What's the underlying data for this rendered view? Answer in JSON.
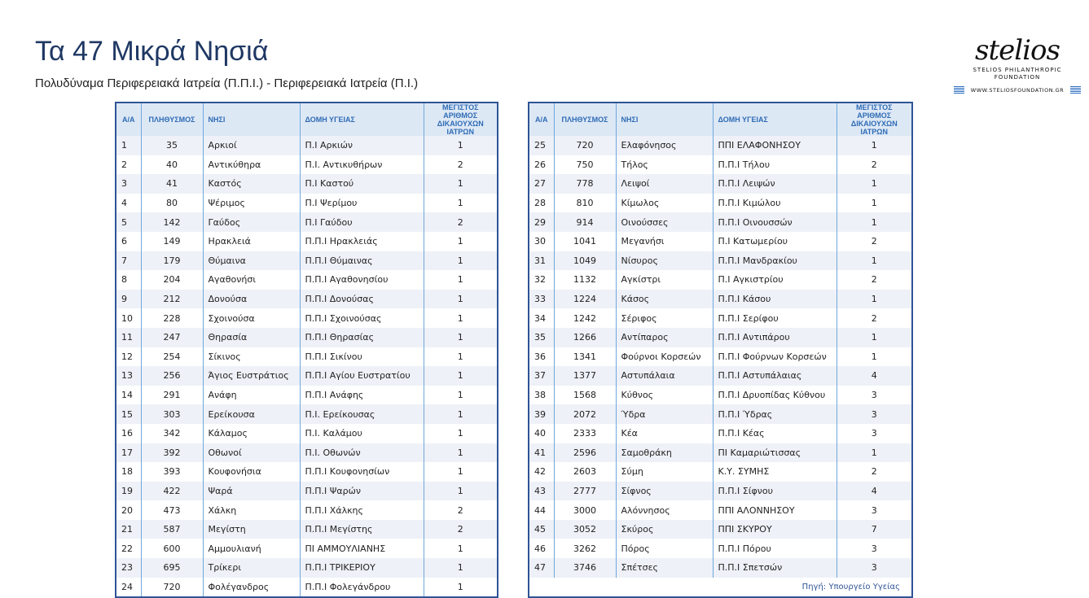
{
  "title": "Τα 47 Μικρά Νησιά",
  "subtitle": "Πολυδύναμα Περιφερειακά Ιατρεία (Π.Π.Ι.) - Περιφερειακά Ιατρεία (Π.Ι.)",
  "logo": {
    "script": "stelios",
    "line1": "STELIOS PHILANTHROPIC",
    "line2": "FOUNDATION",
    "web": "WWW.STELIOSFOUNDATION.GR"
  },
  "colors": {
    "title": "#1f3864",
    "header_bg": "#dde8f5",
    "header_text": "#2e6bb5",
    "border": "#2f5496",
    "row_alt": "#eef1f7"
  },
  "columns": [
    "Α/Α",
    "ΠΛΗΘΥΣΜΟΣ",
    "ΝΗΣΙ",
    "ΔΟΜΗ ΥΓΕΙΑΣ",
    "ΜΕΓΙΣΤΟΣ ΑΡΙΘΜΟΣ ΔΙΚΑΙΟΥΧΩΝ ΙΑΤΡΩΝ"
  ],
  "source": "Πηγή: Υπουργείο Υγείας",
  "rows": [
    [
      "1",
      "35",
      "Αρκιοί",
      "Π.Ι Αρκιών",
      "1"
    ],
    [
      "2",
      "40",
      "Αντικύθηρα",
      "Π.Ι. Αντικυθήρων",
      "2"
    ],
    [
      "3",
      "41",
      "Καστός",
      "Π.Ι Καστού",
      "1"
    ],
    [
      "4",
      "80",
      "Ψέριμος",
      "Π.Ι Ψερίμου",
      "1"
    ],
    [
      "5",
      "142",
      "Γαύδος",
      "Π.Ι Γαύδου",
      "2"
    ],
    [
      "6",
      "149",
      "Ηρακλειά",
      "Π.Π.Ι Ηρακλειάς",
      "1"
    ],
    [
      "7",
      "179",
      "Θύμαινα",
      "Π.Π.Ι Θύμαινας",
      "1"
    ],
    [
      "8",
      "204",
      "Αγαθονήσι",
      "Π.Π.Ι Αγαθονησίου",
      "1"
    ],
    [
      "9",
      "212",
      "Δονούσα",
      "Π.Π.Ι Δονούσας",
      "1"
    ],
    [
      "10",
      "228",
      "Σχοινούσα",
      "Π.Π.Ι Σχοινούσας",
      "1"
    ],
    [
      "11",
      "247",
      "Θηρασία",
      "Π.Π.Ι Θηρασίας",
      "1"
    ],
    [
      "12",
      "254",
      "Σίκινος",
      "Π.Π.Ι Σικίνου",
      "1"
    ],
    [
      "13",
      "256",
      "Άγιος Ευστράτιος",
      "Π.Π.Ι Αγίου Ευστρατίου",
      "1"
    ],
    [
      "14",
      "291",
      "Ανάφη",
      "Π.Π.Ι Ανάφης",
      "1"
    ],
    [
      "15",
      "303",
      "Ερείκουσα",
      "Π.Ι. Ερείκουσας",
      "1"
    ],
    [
      "16",
      "342",
      "Κάλαμος",
      "Π.Ι. Καλάμου",
      "1"
    ],
    [
      "17",
      "392",
      "Οθωνοί",
      "Π.Ι. Οθωνών",
      "1"
    ],
    [
      "18",
      "393",
      "Κουφονήσια",
      "Π.Π.Ι Κουφονησίων",
      "1"
    ],
    [
      "19",
      "422",
      "Ψαρά",
      "Π.Π.Ι Ψαρών",
      "1"
    ],
    [
      "20",
      "473",
      "Χάλκη",
      "Π.Π.Ι Χάλκης",
      "2"
    ],
    [
      "21",
      "587",
      "Μεγίστη",
      "Π.Π.Ι Μεγίστης",
      "2"
    ],
    [
      "22",
      "600",
      "Αμμουλιανή",
      "ΠΙ ΑΜΜΟΥΛΙΑΝΗΣ",
      "1"
    ],
    [
      "23",
      "695",
      "Τρίκερι",
      "Π.Π.Ι ΤΡΙΚΕΡΙΟΥ",
      "1"
    ],
    [
      "24",
      "720",
      "Φολέγανδρος",
      "Π.Π.Ι Φολεγάνδρου",
      "1"
    ],
    [
      "25",
      "720",
      "Ελαφόνησος",
      "ΠΠΙ ΕΛΑΦΟΝΗΣΟΥ",
      "1"
    ],
    [
      "26",
      "750",
      "Τήλος",
      "Π.Π.Ι Τήλου",
      "2"
    ],
    [
      "27",
      "778",
      "Λειψοί",
      "Π.Π.Ι Λειψών",
      "1"
    ],
    [
      "28",
      "810",
      "Κίμωλος",
      "Π.Π.Ι Κιμώλου",
      "1"
    ],
    [
      "29",
      "914",
      "Οινούσσες",
      "Π.Π.Ι Οινουσσών",
      "1"
    ],
    [
      "30",
      "1041",
      "Μεγανήσι",
      "Π.Ι Κατωμερίου",
      "2"
    ],
    [
      "31",
      "1049",
      "Νίσυρος",
      "Π.Π.Ι Μανδρακίου",
      "1"
    ],
    [
      "32",
      "1132",
      "Αγκίστρι",
      "Π.Ι Αγκιστρίου",
      "2"
    ],
    [
      "33",
      "1224",
      "Κάσος",
      "Π.Π.Ι Κάσου",
      "1"
    ],
    [
      "34",
      "1242",
      "Σέριφος",
      "Π.Π.Ι Σερίφου",
      "2"
    ],
    [
      "35",
      "1266",
      "Αντίπαρος",
      "Π.Π.Ι Αντιπάρου",
      "1"
    ],
    [
      "36",
      "1341",
      "Φούρνοι Κορσεών",
      "Π.Π.Ι Φούρνων Κορσεών",
      "1"
    ],
    [
      "37",
      "1377",
      "Αστυπάλαια",
      "Π.Π.Ι Αστυπάλαιας",
      "4"
    ],
    [
      "38",
      "1568",
      "Κύθνος",
      "Π.Π.Ι Δρυοπίδας Κύθνου",
      "3"
    ],
    [
      "39",
      "2072",
      "Ύδρα",
      "Π.Π.Ι Ύδρας",
      "3"
    ],
    [
      "40",
      "2333",
      "Κέα",
      "Π.Π.Ι Κέας",
      "3"
    ],
    [
      "41",
      "2596",
      "Σαμοθράκη",
      "ΠΙ Καμαριώτισσας",
      "1"
    ],
    [
      "42",
      "2603",
      "Σύμη",
      "Κ.Υ. ΣΥΜΗΣ",
      "2"
    ],
    [
      "43",
      "2777",
      "Σίφνος",
      "Π.Π.Ι Σίφνου",
      "4"
    ],
    [
      "44",
      "3000",
      "Αλόννησος",
      "ΠΠΙ ΑΛΟΝΝΗΣΟΥ",
      "3"
    ],
    [
      "45",
      "3052",
      "Σκύρος",
      "ΠΠΙ ΣΚΥΡΟΥ",
      "7"
    ],
    [
      "46",
      "3262",
      "Πόρος",
      "Π.Π.Ι Πόρου",
      "3"
    ],
    [
      "47",
      "3746",
      "Σπέτσες",
      "Π.Π.Ι Σπετσών",
      "3"
    ]
  ]
}
